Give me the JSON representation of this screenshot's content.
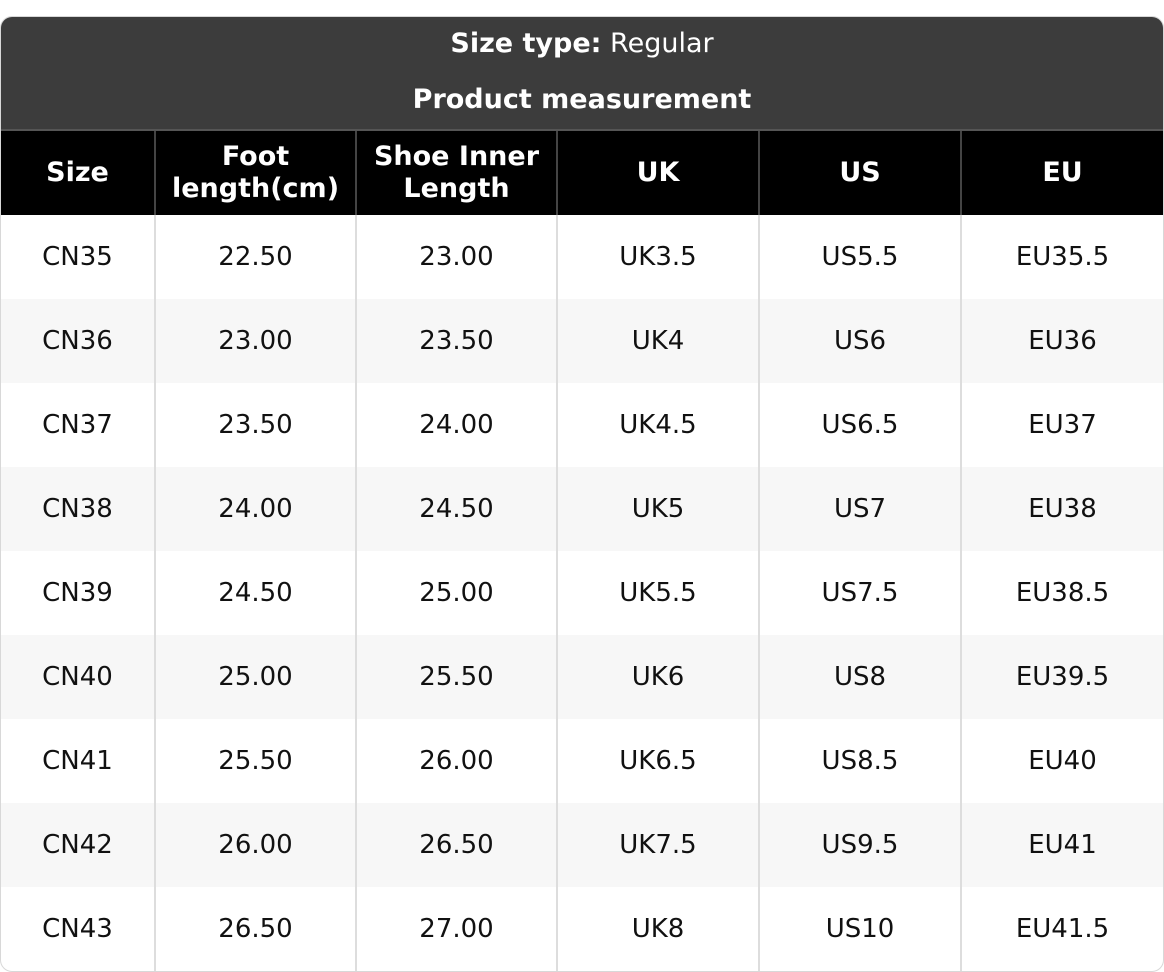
{
  "header": {
    "size_type_label": "Size type:",
    "size_type_value": "Regular",
    "subtitle": "Product measurement"
  },
  "table": {
    "columns": [
      "Size",
      "Foot length(cm)",
      "Shoe Inner Length",
      "UK",
      "US",
      "EU"
    ],
    "rows": [
      [
        "CN35",
        "22.50",
        "23.00",
        "UK3.5",
        "US5.5",
        "EU35.5"
      ],
      [
        "CN36",
        "23.00",
        "23.50",
        "UK4",
        "US6",
        "EU36"
      ],
      [
        "CN37",
        "23.50",
        "24.00",
        "UK4.5",
        "US6.5",
        "EU37"
      ],
      [
        "CN38",
        "24.00",
        "24.50",
        "UK5",
        "US7",
        "EU38"
      ],
      [
        "CN39",
        "24.50",
        "25.00",
        "UK5.5",
        "US7.5",
        "EU38.5"
      ],
      [
        "CN40",
        "25.00",
        "25.50",
        "UK6",
        "US8",
        "EU39.5"
      ],
      [
        "CN41",
        "25.50",
        "26.00",
        "UK6.5",
        "US8.5",
        "EU40"
      ],
      [
        "CN42",
        "26.00",
        "26.50",
        "UK7.5",
        "US9.5",
        "EU41"
      ],
      [
        "CN43",
        "26.50",
        "27.00",
        "UK8",
        "US10",
        "EU41.5"
      ]
    ]
  }
}
